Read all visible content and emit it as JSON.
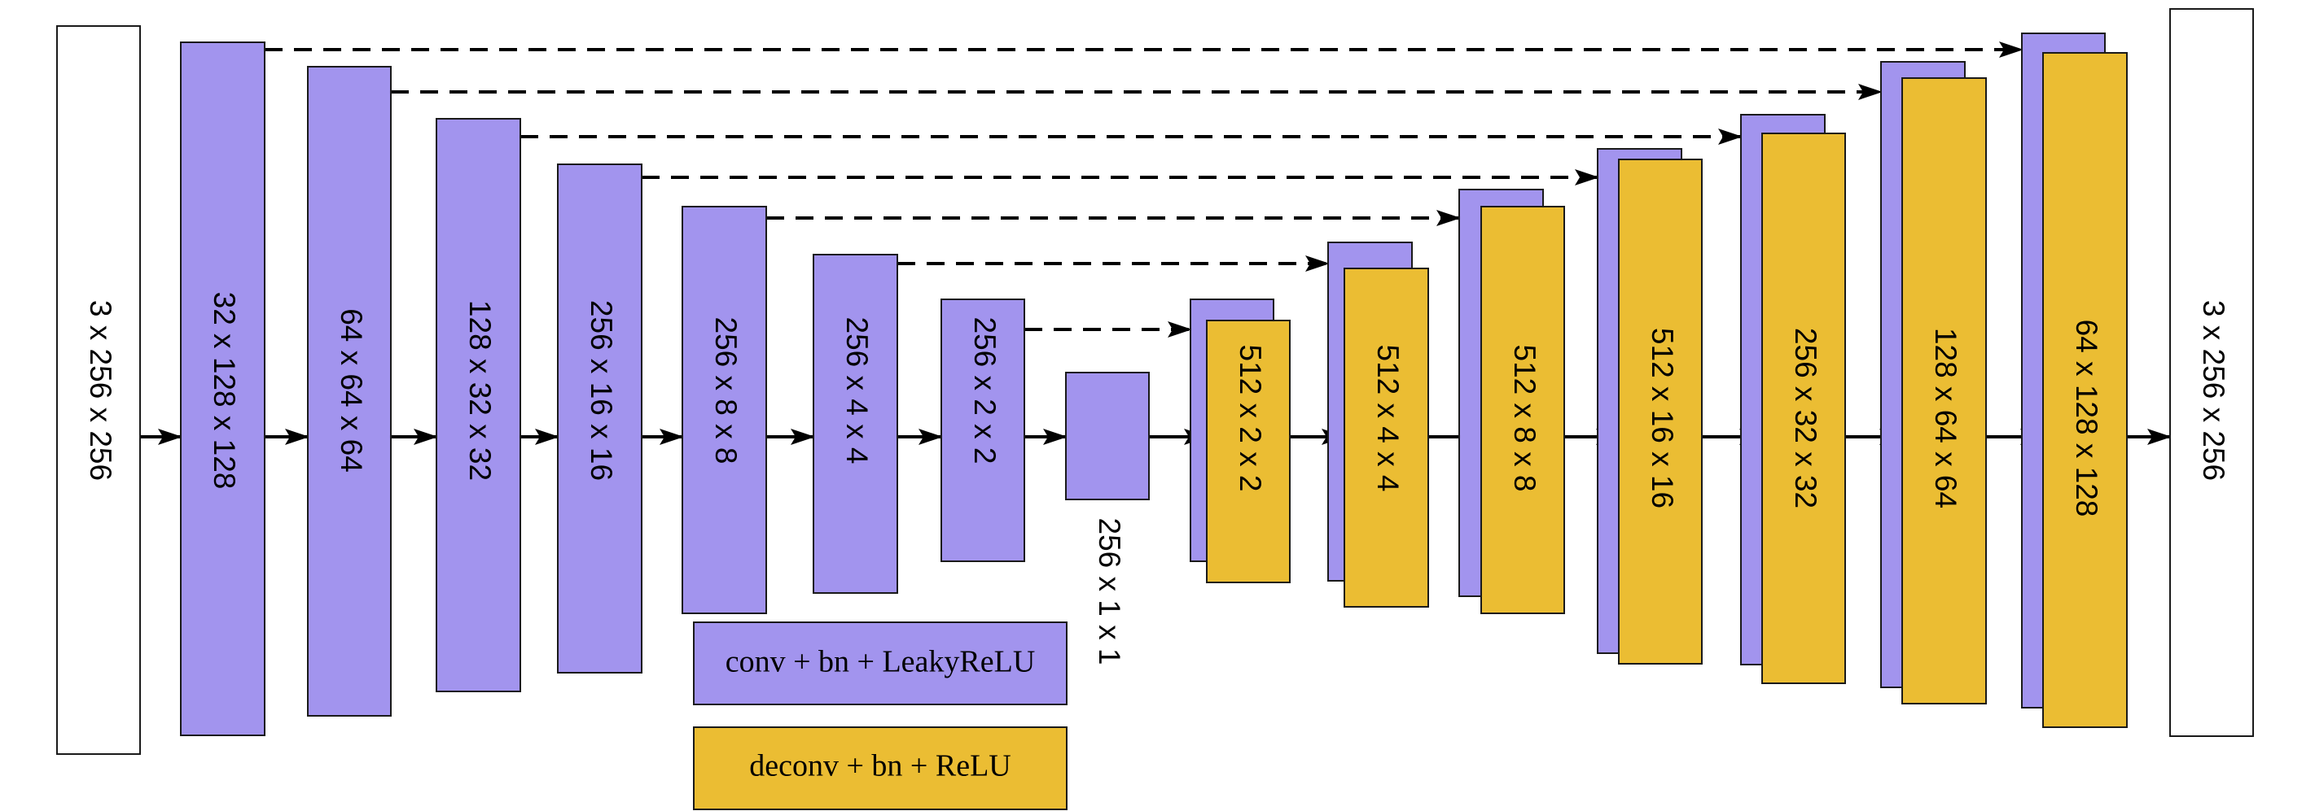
{
  "colors": {
    "encoder": "#a294ee",
    "decoder": "#ebbd33",
    "io": "#ffffff",
    "stroke": "#1a1a1a",
    "arrow": "#000000"
  },
  "input_label": "3 x 256 x 256",
  "output_label": "3 x 256 x 256",
  "encoder_labels": [
    "32 x 128 x 128",
    "64 x 64 x 64",
    "128 x 32 x 32",
    "256 x 16 x 16",
    "256 x 8 x 8",
    "256 x 4 x 4",
    "256 x 2 x 2"
  ],
  "bottleneck_label": "256 x 1 x 1",
  "decoder_labels": [
    "512 x 2 x 2",
    "512 x 4 x 4",
    "512 x 8 x 8",
    "512 x 16 x 16",
    "256 x 32 x 32",
    "128 x 64 x 64",
    "64 x 128 x 128"
  ],
  "legend": {
    "encoder_text": "conv + bn + LeakyReLU",
    "decoder_text": "deconv + bn + ReLU"
  }
}
